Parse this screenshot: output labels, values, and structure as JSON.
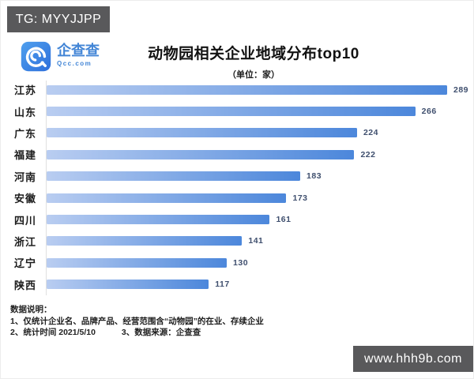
{
  "watermarks": {
    "top_left": "TG: MYYJJPP",
    "bottom_right": "www.hhh9b.com"
  },
  "logo": {
    "name": "企查查",
    "domain": "Qcc.com",
    "icon": "qcc-spiral-q-icon",
    "brand_color": "#4285d6"
  },
  "header": {
    "title": "动物园相关企业地域分布top10",
    "subtitle": "（单位：家）"
  },
  "chart_data": {
    "type": "bar",
    "orientation": "horizontal",
    "title": "动物园相关企业地域分布top10",
    "unit": "家",
    "categories": [
      "江苏",
      "山东",
      "广东",
      "福建",
      "河南",
      "安徽",
      "四川",
      "浙江",
      "辽宁",
      "陕西"
    ],
    "values": [
      289,
      266,
      224,
      222,
      183,
      173,
      161,
      141,
      130,
      117
    ],
    "xlim": [
      0,
      289
    ],
    "grid": false,
    "legend": "none",
    "bar_color_start": "#b9cdf1",
    "bar_color_end": "#4c87db",
    "value_label_color": "#3f4f6e"
  },
  "notes": {
    "heading": "数据说明：",
    "line1": "1、仅统计企业名、品牌产品、经营范围含“动物园”的在业、存续企业",
    "line2a": "2、统计时间 2021/5/10",
    "line2b": "3、数据来源：企查查"
  }
}
